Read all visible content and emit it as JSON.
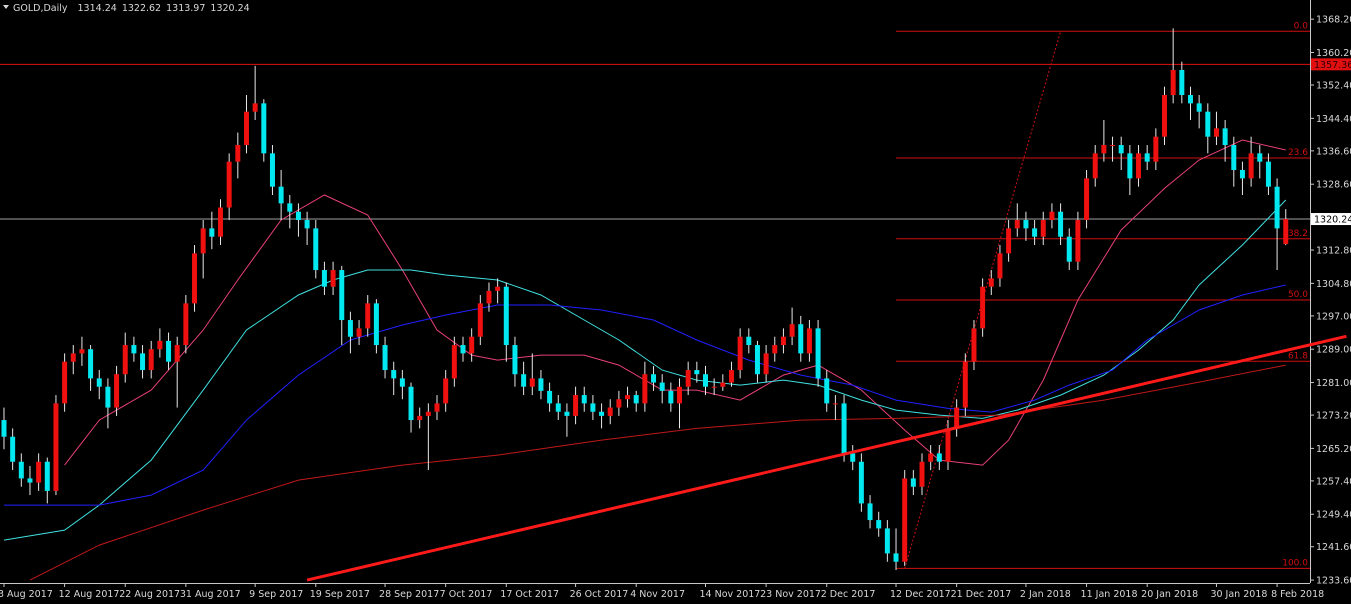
{
  "chart_data": {
    "type": "candlestick",
    "title": "GOLD,Daily",
    "up_color": "#f01010",
    "down_color": "#00e8f0",
    "wick_color": "#e8e8e8",
    "xlim": [
      -0.46,
      150.8
    ],
    "ylim": [
      1232.9,
      1372.8
    ],
    "yticks": [
      {
        "value": 1368.2,
        "label": "1368.20"
      },
      {
        "value": 1360.2,
        "label": "1360.20"
      },
      {
        "value": 1352.4,
        "label": "1352.40"
      },
      {
        "value": 1344.4,
        "label": "1344.40"
      },
      {
        "value": 1336.6,
        "label": "1336.60"
      },
      {
        "value": 1328.6,
        "label": "1328.60"
      },
      {
        "value": 1312.8,
        "label": "1312.80"
      },
      {
        "value": 1304.8,
        "label": "1304.80"
      },
      {
        "value": 1297,
        "label": "1297.00"
      },
      {
        "value": 1289,
        "label": "1289.00"
      },
      {
        "value": 1281,
        "label": "1281.00"
      },
      {
        "value": 1273.2,
        "label": "1273.20"
      },
      {
        "value": 1265.2,
        "label": "1265.20"
      },
      {
        "value": 1257.4,
        "label": "1257.40"
      },
      {
        "value": 1249.4,
        "label": "1249.40"
      },
      {
        "value": 1241.6,
        "label": "1241.60"
      },
      {
        "value": 1233.6,
        "label": "1233.60"
      }
    ],
    "xticks": [
      {
        "value": 0,
        "label": "3 Aug 2017"
      },
      {
        "value": 7,
        "label": "12 Aug 2017"
      },
      {
        "value": 14,
        "label": "22 Aug 2017"
      },
      {
        "value": 21,
        "label": "31 Aug 2017"
      },
      {
        "value": 29,
        "label": "9 Sep 2017"
      },
      {
        "value": 36,
        "label": "19 Sep 2017"
      },
      {
        "value": 44,
        "label": "28 Sep 2017"
      },
      {
        "value": 51,
        "label": "7 Oct 2017"
      },
      {
        "value": 58,
        "label": "17 Oct 2017"
      },
      {
        "value": 66,
        "label": "26 Oct 2017"
      },
      {
        "value": 73,
        "label": "4 Nov 2017"
      },
      {
        "value": 81,
        "label": "14 Nov 2017"
      },
      {
        "value": 88,
        "label": "23 Nov 2017"
      },
      {
        "value": 95,
        "label": "2 Dec 2017"
      },
      {
        "value": 103,
        "label": "12 Dec 2017"
      },
      {
        "value": 110,
        "label": "21 Dec 2017"
      },
      {
        "value": 118,
        "label": "2 Jan 2018"
      },
      {
        "value": 125,
        "label": "11 Jan 2018"
      },
      {
        "value": 132,
        "label": "20 Jan 2018"
      },
      {
        "value": 140,
        "label": "30 Jan 2018"
      },
      {
        "value": 147,
        "label": "8 Feb 2018"
      }
    ],
    "ohlc": [
      [
        1272,
        1275,
        1265,
        1268
      ],
      [
        1268,
        1270,
        1260,
        1262
      ],
      [
        1262,
        1264,
        1256,
        1258
      ],
      [
        1258,
        1261,
        1254,
        1257
      ],
      [
        1257,
        1264,
        1255,
        1262
      ],
      [
        1262,
        1263,
        1252,
        1255
      ],
      [
        1255,
        1278,
        1254,
        1276
      ],
      [
        1276,
        1288,
        1274,
        1286
      ],
      [
        1286,
        1290,
        1283,
        1288
      ],
      [
        1288,
        1292,
        1285,
        1289
      ],
      [
        1289,
        1290,
        1279,
        1282
      ],
      [
        1282,
        1284,
        1277,
        1280
      ],
      [
        1280,
        1282,
        1270,
        1275
      ],
      [
        1275,
        1285,
        1273,
        1283
      ],
      [
        1283,
        1293,
        1281,
        1290
      ],
      [
        1290,
        1292,
        1286,
        1288
      ],
      [
        1288,
        1290,
        1282,
        1284
      ],
      [
        1284,
        1291,
        1282,
        1289
      ],
      [
        1289,
        1294,
        1287,
        1291
      ],
      [
        1291,
        1293,
        1284,
        1286
      ],
      [
        1286,
        1292,
        1275,
        1290
      ],
      [
        1290,
        1302,
        1288,
        1300
      ],
      [
        1300,
        1314,
        1298,
        1312
      ],
      [
        1312,
        1320,
        1306,
        1318
      ],
      [
        1318,
        1322,
        1313,
        1316
      ],
      [
        1316,
        1325,
        1314,
        1323
      ],
      [
        1323,
        1336,
        1320,
        1334
      ],
      [
        1334,
        1341,
        1330,
        1338
      ],
      [
        1338,
        1350,
        1336,
        1346
      ],
      [
        1346,
        1357,
        1344,
        1348
      ],
      [
        1348,
        1349,
        1334,
        1336
      ],
      [
        1336,
        1338,
        1326,
        1328
      ],
      [
        1328,
        1332,
        1320,
        1324
      ],
      [
        1324,
        1326,
        1318,
        1322
      ],
      [
        1322,
        1324,
        1316,
        1320
      ],
      [
        1320,
        1322,
        1314,
        1318
      ],
      [
        1318,
        1320,
        1306,
        1308
      ],
      [
        1308,
        1310,
        1302,
        1304
      ],
      [
        1304,
        1310,
        1302,
        1308
      ],
      [
        1308,
        1309,
        1290,
        1296
      ],
      [
        1296,
        1298,
        1288,
        1292
      ],
      [
        1292,
        1296,
        1290,
        1294
      ],
      [
        1294,
        1302,
        1292,
        1300
      ],
      [
        1300,
        1301,
        1288,
        1290
      ],
      [
        1290,
        1292,
        1282,
        1284
      ],
      [
        1284,
        1286,
        1278,
        1282
      ],
      [
        1282,
        1284,
        1277,
        1280
      ],
      [
        1280,
        1281,
        1269,
        1272
      ],
      [
        1272,
        1275,
        1270,
        1273
      ],
      [
        1273,
        1276,
        1260,
        1274
      ],
      [
        1274,
        1278,
        1272,
        1276
      ],
      [
        1276,
        1284,
        1274,
        1282
      ],
      [
        1282,
        1292,
        1280,
        1290
      ],
      [
        1290,
        1292,
        1286,
        1288
      ],
      [
        1288,
        1294,
        1286,
        1292
      ],
      [
        1292,
        1302,
        1290,
        1300
      ],
      [
        1300,
        1305,
        1298,
        1303
      ],
      [
        1303,
        1306,
        1300,
        1304
      ],
      [
        1304,
        1305,
        1286,
        1290
      ],
      [
        1290,
        1292,
        1280,
        1283
      ],
      [
        1283,
        1286,
        1278,
        1280
      ],
      [
        1280,
        1288,
        1278,
        1282
      ],
      [
        1282,
        1284,
        1277,
        1279
      ],
      [
        1279,
        1281,
        1274,
        1276
      ],
      [
        1276,
        1278,
        1272,
        1274
      ],
      [
        1274,
        1276,
        1268,
        1273
      ],
      [
        1273,
        1280,
        1271,
        1278
      ],
      [
        1278,
        1280,
        1274,
        1276
      ],
      [
        1276,
        1278,
        1272,
        1274
      ],
      [
        1274,
        1276,
        1270,
        1273
      ],
      [
        1273,
        1277,
        1271,
        1275
      ],
      [
        1275,
        1279,
        1273,
        1277
      ],
      [
        1277,
        1280,
        1275,
        1278
      ],
      [
        1278,
        1279,
        1274,
        1276
      ],
      [
        1276,
        1286,
        1274,
        1283
      ],
      [
        1283,
        1285,
        1279,
        1281
      ],
      [
        1281,
        1283,
        1276,
        1279
      ],
      [
        1279,
        1281,
        1274,
        1276
      ],
      [
        1276,
        1282,
        1270,
        1280
      ],
      [
        1280,
        1286,
        1278,
        1284
      ],
      [
        1284,
        1286,
        1281,
        1283
      ],
      [
        1283,
        1285,
        1278,
        1280
      ],
      [
        1280,
        1282,
        1278,
        1280
      ],
      [
        1280,
        1283,
        1279,
        1281
      ],
      [
        1281,
        1286,
        1280,
        1284
      ],
      [
        1284,
        1294,
        1282,
        1292
      ],
      [
        1292,
        1294,
        1288,
        1290
      ],
      [
        1290,
        1291,
        1281,
        1283
      ],
      [
        1283,
        1290,
        1281,
        1288
      ],
      [
        1288,
        1292,
        1286,
        1290
      ],
      [
        1290,
        1294,
        1288,
        1292
      ],
      [
        1292,
        1299,
        1290,
        1295
      ],
      [
        1295,
        1297,
        1286,
        1288
      ],
      [
        1288,
        1296,
        1286,
        1294
      ],
      [
        1294,
        1296,
        1280,
        1282
      ],
      [
        1282,
        1284,
        1274,
        1276
      ],
      [
        1276,
        1278,
        1272,
        1276
      ],
      [
        1276,
        1278,
        1262,
        1264
      ],
      [
        1264,
        1266,
        1260,
        1262
      ],
      [
        1262,
        1264,
        1250,
        1252
      ],
      [
        1252,
        1254,
        1246,
        1248
      ],
      [
        1248,
        1250,
        1244,
        1246
      ],
      [
        1246,
        1248,
        1238,
        1240
      ],
      [
        1240,
        1246,
        1236,
        1238
      ],
      [
        1238,
        1260,
        1237,
        1258
      ],
      [
        1258,
        1260,
        1254,
        1256
      ],
      [
        1256,
        1264,
        1254,
        1262
      ],
      [
        1262,
        1266,
        1260,
        1264
      ],
      [
        1264,
        1266,
        1260,
        1262
      ],
      [
        1262,
        1272,
        1260,
        1270
      ],
      [
        1270,
        1277,
        1268,
        1275
      ],
      [
        1275,
        1288,
        1273,
        1286
      ],
      [
        1286,
        1296,
        1284,
        1294
      ],
      [
        1294,
        1306,
        1292,
        1304
      ],
      [
        1304,
        1308,
        1302,
        1306
      ],
      [
        1306,
        1314,
        1304,
        1312
      ],
      [
        1312,
        1320,
        1310,
        1318
      ],
      [
        1318,
        1324,
        1316,
        1320
      ],
      [
        1320,
        1322,
        1315,
        1318
      ],
      [
        1318,
        1320,
        1314,
        1316
      ],
      [
        1316,
        1322,
        1314,
        1320
      ],
      [
        1320,
        1324,
        1318,
        1322
      ],
      [
        1322,
        1324,
        1314,
        1316
      ],
      [
        1316,
        1318,
        1308,
        1310
      ],
      [
        1310,
        1322,
        1308,
        1320
      ],
      [
        1320,
        1332,
        1318,
        1330
      ],
      [
        1330,
        1338,
        1328,
        1336
      ],
      [
        1336,
        1344,
        1334,
        1338
      ],
      [
        1338,
        1340,
        1334,
        1338
      ],
      [
        1338,
        1340,
        1332,
        1336
      ],
      [
        1336,
        1338,
        1326,
        1330
      ],
      [
        1330,
        1338,
        1328,
        1336
      ],
      [
        1336,
        1338,
        1332,
        1334
      ],
      [
        1334,
        1342,
        1332,
        1340
      ],
      [
        1340,
        1352,
        1338,
        1350
      ],
      [
        1350,
        1366,
        1348,
        1356
      ],
      [
        1356,
        1358,
        1348,
        1350
      ],
      [
        1350,
        1352,
        1344,
        1348
      ],
      [
        1348,
        1350,
        1342,
        1346
      ],
      [
        1346,
        1348,
        1336,
        1340
      ],
      [
        1340,
        1346,
        1338,
        1342
      ],
      [
        1342,
        1344,
        1334,
        1338
      ],
      [
        1338,
        1340,
        1328,
        1332
      ],
      [
        1332,
        1334,
        1326,
        1330
      ],
      [
        1330,
        1340,
        1328,
        1336
      ],
      [
        1336,
        1338,
        1330,
        1334
      ],
      [
        1334,
        1336,
        1326,
        1328
      ],
      [
        1328,
        1330,
        1308,
        1318
      ],
      [
        1314.24,
        1322.62,
        1313.97,
        1320.24
      ]
    ],
    "moving_averages": [
      {
        "color": "#e8407a",
        "x": [
          7,
          11,
          17,
          23,
          27,
          32,
          37,
          42,
          46,
          50,
          54,
          57,
          62,
          67,
          71,
          76,
          80,
          85,
          90,
          94,
          99,
          104,
          108,
          113,
          116,
          120,
          124,
          129,
          134,
          138,
          143,
          148
        ],
        "values": [
          1261.2,
          1272,
          1279.2,
          1293.6,
          1305.6,
          1320,
          1326,
          1321.2,
          1308,
          1293.6,
          1287.6,
          1286.4,
          1287.6,
          1287.6,
          1285.2,
          1279.2,
          1279.2,
          1276.8,
          1282.8,
          1285.2,
          1279.2,
          1269.6,
          1262.4,
          1261.2,
          1267.2,
          1281.6,
          1300.8,
          1317.6,
          1327.6,
          1334.4,
          1339.2,
          1336.8
        ]
      },
      {
        "color": "#40e0e0",
        "x": [
          0,
          7,
          11,
          17,
          23,
          28,
          34,
          38,
          42,
          47,
          51,
          57,
          62,
          67,
          71,
          76,
          80,
          85,
          90,
          94,
          99,
          103,
          108,
          113,
          117,
          122,
          127,
          131,
          135,
          138,
          143,
          148
        ],
        "values": [
          1243.2,
          1245.6,
          1251.6,
          1262.4,
          1279.2,
          1293.6,
          1302,
          1305.6,
          1308,
          1308,
          1306.8,
          1305.6,
          1302,
          1296,
          1291.2,
          1284,
          1281.6,
          1280.4,
          1281.6,
          1280.4,
          1276.8,
          1274.4,
          1273.2,
          1272.4,
          1274.4,
          1278,
          1282.8,
          1288.8,
          1296,
          1304.4,
          1314,
          1324.8
        ]
      },
      {
        "color": "#2020ff",
        "x": [
          0,
          7,
          11,
          17,
          23,
          28,
          34,
          40,
          46,
          51,
          57,
          63,
          69,
          75,
          80,
          86,
          92,
          98,
          103,
          109,
          114,
          119,
          123,
          128,
          132,
          138,
          143,
          148
        ],
        "values": [
          1251.6,
          1251.6,
          1251.6,
          1254,
          1260,
          1272,
          1282.8,
          1291.2,
          1294.8,
          1297.2,
          1299.6,
          1299.6,
          1298.4,
          1296,
          1291.2,
          1286.4,
          1282.8,
          1280.4,
          1276.8,
          1274.8,
          1273.9,
          1276.8,
          1280.4,
          1284,
          1291.2,
          1298.4,
          1302,
          1304.4
        ]
      },
      {
        "color": "#c01818",
        "x": [
          3,
          11,
          23,
          34,
          46,
          57,
          69,
          80,
          92,
          103,
          115,
          127,
          138,
          148
        ],
        "values": [
          1233.6,
          1242,
          1250.4,
          1257.6,
          1261.2,
          1263.6,
          1267.2,
          1270,
          1272,
          1272.4,
          1273.2,
          1276.8,
          1281.1,
          1285.2
        ]
      }
    ],
    "horizontal_lines": [
      {
        "value": 1357.36,
        "label": "1357.36",
        "color": "#e01010"
      },
      {
        "value": 1320.24,
        "label": "1320.24",
        "color": "#a0a0a0"
      }
    ],
    "fibonacci": {
      "color": "#d01010",
      "from_x": 103,
      "levels": [
        {
          "label": "0.0",
          "value": 1365.3
        },
        {
          "label": "23.6",
          "value": 1334.9
        },
        {
          "label": "38.2",
          "value": 1315.5
        },
        {
          "label": "50.0",
          "value": 1300.8
        },
        {
          "label": "61.8",
          "value": 1286.1
        },
        {
          "label": "100.0",
          "value": 1236.4
        }
      ],
      "diagonal": {
        "x": [
          104,
          122
        ],
        "values": [
          1236.4,
          1365.3
        ]
      }
    },
    "trendline": {
      "color": "#ff1a1a",
      "x": [
        35,
        155
      ],
      "values": [
        1233.6,
        1292.1
      ]
    }
  }
}
